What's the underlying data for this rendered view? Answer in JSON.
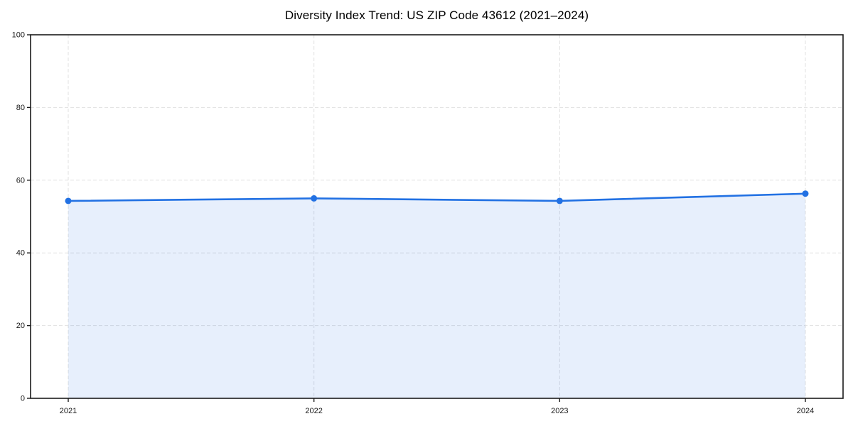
{
  "title": "Diversity Index Trend: US ZIP Code 43612 (2021–2024)",
  "colors": {
    "background": "#ffffff",
    "line": "#2271e3",
    "marker": "#2271e3",
    "fill": "rgba(34, 113, 227, 0.11)",
    "grid": "#e1e1e1",
    "axis": "#1a1a1a",
    "tick_label": "#1a1a1a",
    "title_color": "#000000"
  },
  "chart_data": {
    "type": "area",
    "title": "Diversity Index Trend: US ZIP Code 43612 (2021–2024)",
    "categories": [
      "2021",
      "2022",
      "2023",
      "2024"
    ],
    "x": [
      2021,
      2022,
      2023,
      2024
    ],
    "series": [
      {
        "name": "Diversity Index",
        "values": [
          54.3,
          55.0,
          54.3,
          56.3
        ]
      }
    ],
    "xlabel": "",
    "ylabel": "",
    "ylim": [
      0,
      100
    ],
    "yticks": [
      0,
      20,
      40,
      60,
      80,
      100
    ],
    "grid": true,
    "grid_style": "dashed",
    "legend": false,
    "marker": "circle",
    "line_width": 2.6,
    "marker_radius": 4.5
  }
}
